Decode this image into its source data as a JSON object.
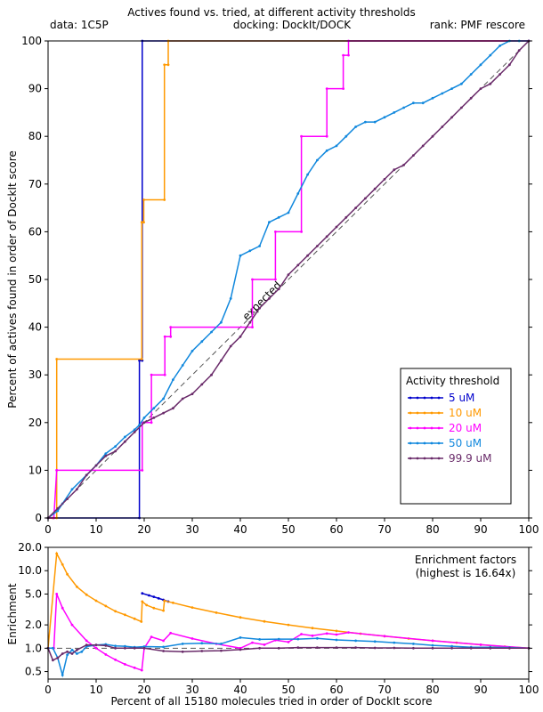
{
  "header": {
    "title": "Actives found vs. tried, at different activity thresholds",
    "data_label": "data: 1C5P",
    "docking_label": "docking: DockIt/DOCK",
    "rank_label": "rank: PMF rescore"
  },
  "chart_data": [
    {
      "type": "line",
      "title": "Actives found vs. tried, at different activity thresholds",
      "ylabel": "Percent of actives found in order of DockIt score",
      "xlim": [
        0,
        100
      ],
      "ylim": [
        0,
        100
      ],
      "xticks": [
        0,
        10,
        20,
        30,
        40,
        50,
        60,
        70,
        80,
        90,
        100
      ],
      "yticks": [
        0,
        10,
        20,
        30,
        40,
        50,
        60,
        70,
        80,
        90,
        100
      ],
      "reference_line": {
        "label": "expected",
        "x": [
          0,
          100
        ],
        "y": [
          0,
          100
        ]
      },
      "legend": {
        "title": "Activity threshold",
        "position": "lower-right"
      },
      "series": [
        {
          "name": "5 uM",
          "color": "#0000cc",
          "x": [
            0,
            19,
            19,
            19.6,
            19.6,
            100
          ],
          "y": [
            0,
            0,
            33,
            33,
            100,
            100
          ]
        },
        {
          "name": "10 uM",
          "color": "#ff9900",
          "x": [
            0,
            1,
            1.8,
            1.8,
            19.5,
            19.5,
            19.9,
            19.9,
            24.2,
            24.2,
            25,
            25,
            100
          ],
          "y": [
            0,
            0,
            0,
            33.3,
            33.3,
            62,
            62,
            66.7,
            66.7,
            95,
            95,
            100,
            100
          ]
        },
        {
          "name": "20 uM",
          "color": "#ff00ff",
          "x": [
            0,
            1.2,
            1.8,
            1.8,
            19.6,
            19.6,
            21.5,
            21.5,
            24.3,
            24.3,
            25.5,
            25.5,
            42.5,
            42.5,
            47.3,
            47.3,
            52.7,
            52.7,
            58,
            58,
            61.4,
            61.4,
            62.5,
            62.5,
            100
          ],
          "y": [
            0,
            0,
            10,
            10,
            10,
            20,
            20,
            30,
            30,
            38,
            38,
            40,
            40,
            50,
            50,
            60,
            60,
            80,
            80,
            90,
            90,
            97,
            97,
            100,
            100
          ]
        },
        {
          "name": "50 uM",
          "color": "#1188dd",
          "x": [
            0,
            2,
            3,
            5,
            8,
            10,
            12,
            14,
            16,
            18,
            19,
            20,
            22,
            24,
            26,
            28,
            30,
            32,
            34,
            36,
            38,
            40,
            42,
            44,
            46,
            48,
            50,
            52,
            54,
            56,
            58,
            60,
            62,
            64,
            66,
            68,
            70,
            72,
            74,
            76,
            78,
            80,
            82,
            84,
            86,
            88,
            90,
            92,
            94,
            96,
            98,
            100
          ],
          "y": [
            0,
            1.5,
            3,
            6,
            9,
            11,
            13.5,
            15,
            17,
            18.5,
            19.5,
            21,
            23,
            25,
            29,
            32,
            35,
            37,
            39,
            41,
            46,
            55,
            56,
            57,
            62,
            63,
            64,
            68,
            72,
            75,
            77,
            78,
            80,
            82,
            83,
            83,
            84,
            85,
            86,
            87,
            87,
            88,
            89,
            90,
            91,
            93,
            95,
            97,
            99,
            100,
            100,
            100
          ]
        },
        {
          "name": "99.9 uM",
          "color": "#6a2b6a",
          "x": [
            0,
            2,
            4,
            6,
            8,
            10,
            12,
            14,
            16,
            18,
            20,
            22,
            24,
            26,
            28,
            30,
            32,
            34,
            36,
            38,
            40,
            42,
            44,
            46,
            48,
            50,
            52,
            54,
            56,
            58,
            60,
            62,
            64,
            66,
            68,
            70,
            72,
            74,
            76,
            78,
            80,
            82,
            84,
            86,
            88,
            90,
            92,
            94,
            96,
            98,
            100
          ],
          "y": [
            0,
            2,
            4,
            6,
            9,
            11,
            13,
            14,
            16,
            18,
            20,
            21,
            22,
            23,
            25,
            26,
            28,
            30,
            33,
            36,
            38,
            41,
            44,
            46,
            48,
            51,
            53,
            55,
            57,
            59,
            61,
            63,
            65,
            67,
            69,
            71,
            73,
            74,
            76,
            78,
            80,
            82,
            84,
            86,
            88,
            90,
            91,
            93,
            95,
            98,
            100
          ]
        }
      ]
    },
    {
      "type": "line",
      "title": "Enrichment factors",
      "subtitle": "(highest is 16.64x)",
      "xlabel": "Percent of all 15180 molecules tried in order of DockIt score",
      "ylabel": "Enrichment",
      "yscale": "log",
      "xlim": [
        0,
        100
      ],
      "ylim": [
        0.4,
        20
      ],
      "xticks": [
        0,
        10,
        20,
        30,
        40,
        50,
        60,
        70,
        80,
        90,
        100
      ],
      "yticks": [
        0.5,
        1.0,
        2.0,
        5.0,
        10.0,
        20.0
      ],
      "ytick_labels": [
        "0.5",
        "1.0",
        "2.0",
        "5.0",
        "10.0",
        "20.0"
      ],
      "series": [
        {
          "name": "5 uM",
          "color": "#0000cc",
          "x": [
            19.6,
            21,
            22,
            23,
            24,
            25
          ],
          "y": [
            5.1,
            4.8,
            4.6,
            4.4,
            4.2,
            4.0
          ]
        },
        {
          "name": "10 uM",
          "color": "#ff9900",
          "x": [
            0,
            1.8,
            3,
            4,
            6,
            8,
            10,
            12,
            14,
            16,
            18,
            19.4,
            19.6,
            20.5,
            22,
            24,
            24.2,
            26,
            30,
            35,
            40,
            45,
            50,
            55,
            60,
            65,
            70,
            75,
            80,
            85,
            90,
            95,
            100
          ],
          "y": [
            1.0,
            16.6,
            12.0,
            9.0,
            6.2,
            4.9,
            4.1,
            3.5,
            3.0,
            2.7,
            2.4,
            2.2,
            4.0,
            3.6,
            3.3,
            3.05,
            4.1,
            3.85,
            3.35,
            2.87,
            2.5,
            2.22,
            2.0,
            1.82,
            1.67,
            1.54,
            1.43,
            1.33,
            1.25,
            1.18,
            1.11,
            1.05,
            1.0
          ]
        },
        {
          "name": "20 uM",
          "color": "#ff00ff",
          "x": [
            0,
            1.2,
            1.8,
            3,
            5,
            8,
            10,
            12,
            14,
            16,
            18,
            19.5,
            20,
            21.5,
            24,
            25.5,
            30,
            35,
            40,
            42.5,
            45,
            47.3,
            50,
            52.7,
            55,
            58,
            60,
            62.5,
            70,
            80,
            90,
            100
          ],
          "y": [
            1.0,
            1.0,
            5.0,
            3.3,
            2.0,
            1.25,
            1.0,
            0.83,
            0.71,
            0.62,
            0.56,
            0.52,
            1.0,
            1.4,
            1.25,
            1.57,
            1.33,
            1.14,
            1.0,
            1.18,
            1.11,
            1.27,
            1.2,
            1.52,
            1.45,
            1.55,
            1.5,
            1.6,
            1.43,
            1.25,
            1.11,
            1.0
          ]
        },
        {
          "name": "50 uM",
          "color": "#1188dd",
          "x": [
            0,
            1,
            2,
            3,
            4,
            5,
            6,
            7,
            8,
            10,
            12,
            14,
            16,
            18,
            20,
            24,
            28,
            32,
            36,
            40,
            44,
            48,
            52,
            56,
            60,
            64,
            68,
            72,
            76,
            80,
            84,
            88,
            92,
            96,
            100
          ],
          "y": [
            1.0,
            1.0,
            0.75,
            0.45,
            0.82,
            0.95,
            0.85,
            0.9,
            1.05,
            1.1,
            1.12,
            1.07,
            1.06,
            1.03,
            1.05,
            1.04,
            1.14,
            1.16,
            1.14,
            1.37,
            1.3,
            1.31,
            1.31,
            1.34,
            1.28,
            1.25,
            1.22,
            1.18,
            1.14,
            1.09,
            1.06,
            1.03,
            1.03,
            1.02,
            1.0
          ]
        },
        {
          "name": "99.9 uM",
          "color": "#6a2b6a",
          "x": [
            0,
            1,
            2,
            3,
            4,
            5,
            6,
            8,
            10,
            12,
            14,
            16,
            18,
            20,
            24,
            28,
            32,
            36,
            40,
            44,
            48,
            52,
            56,
            60,
            64,
            68,
            72,
            76,
            80,
            84,
            88,
            92,
            96,
            100
          ],
          "y": [
            1.0,
            0.7,
            0.75,
            0.85,
            0.9,
            0.85,
            0.95,
            1.1,
            1.1,
            1.08,
            1.0,
            1.0,
            1.0,
            1.0,
            0.92,
            0.9,
            0.92,
            0.93,
            0.96,
            1.0,
            1.0,
            1.02,
            1.02,
            1.02,
            1.02,
            1.01,
            1.01,
            1.0,
            1.0,
            1.0,
            1.0,
            1.0,
            1.0,
            1.0
          ]
        }
      ]
    }
  ]
}
